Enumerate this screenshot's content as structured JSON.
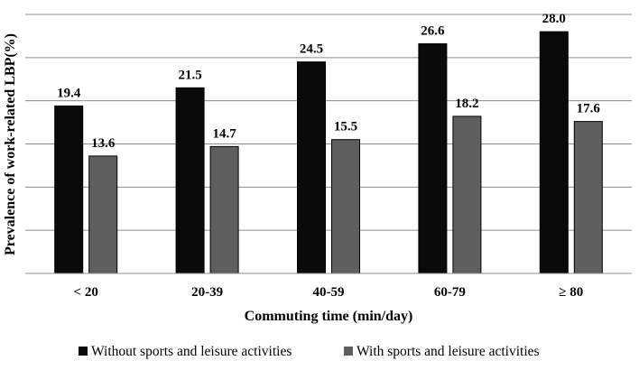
{
  "chart_data": {
    "type": "bar",
    "categories": [
      "< 20",
      "20-39",
      "40-59",
      "60-79",
      "≥ 80"
    ],
    "series": [
      {
        "name": "Without sports and leisure activities",
        "values": [
          19.4,
          21.5,
          24.5,
          26.6,
          28.0
        ],
        "labels": [
          "19.4",
          "21.5",
          "24.5",
          "26.6",
          "28.0"
        ],
        "color": "#0a0a0a"
      },
      {
        "name": "With sports and leisure activities",
        "values": [
          13.6,
          14.7,
          15.5,
          18.2,
          17.6
        ],
        "labels": [
          "13.6",
          "14.7",
          "15.5",
          "18.2",
          "17.6"
        ],
        "color": "#5f5f5f"
      }
    ],
    "title": "",
    "xlabel": "Commuting time (min/day)",
    "ylabel": "Prevalence of work-related LBP(%)",
    "ylim": [
      0,
      30
    ],
    "gridlines": [
      0,
      5,
      10,
      15,
      20,
      25,
      30
    ],
    "grid": true,
    "legend": "bottom"
  }
}
